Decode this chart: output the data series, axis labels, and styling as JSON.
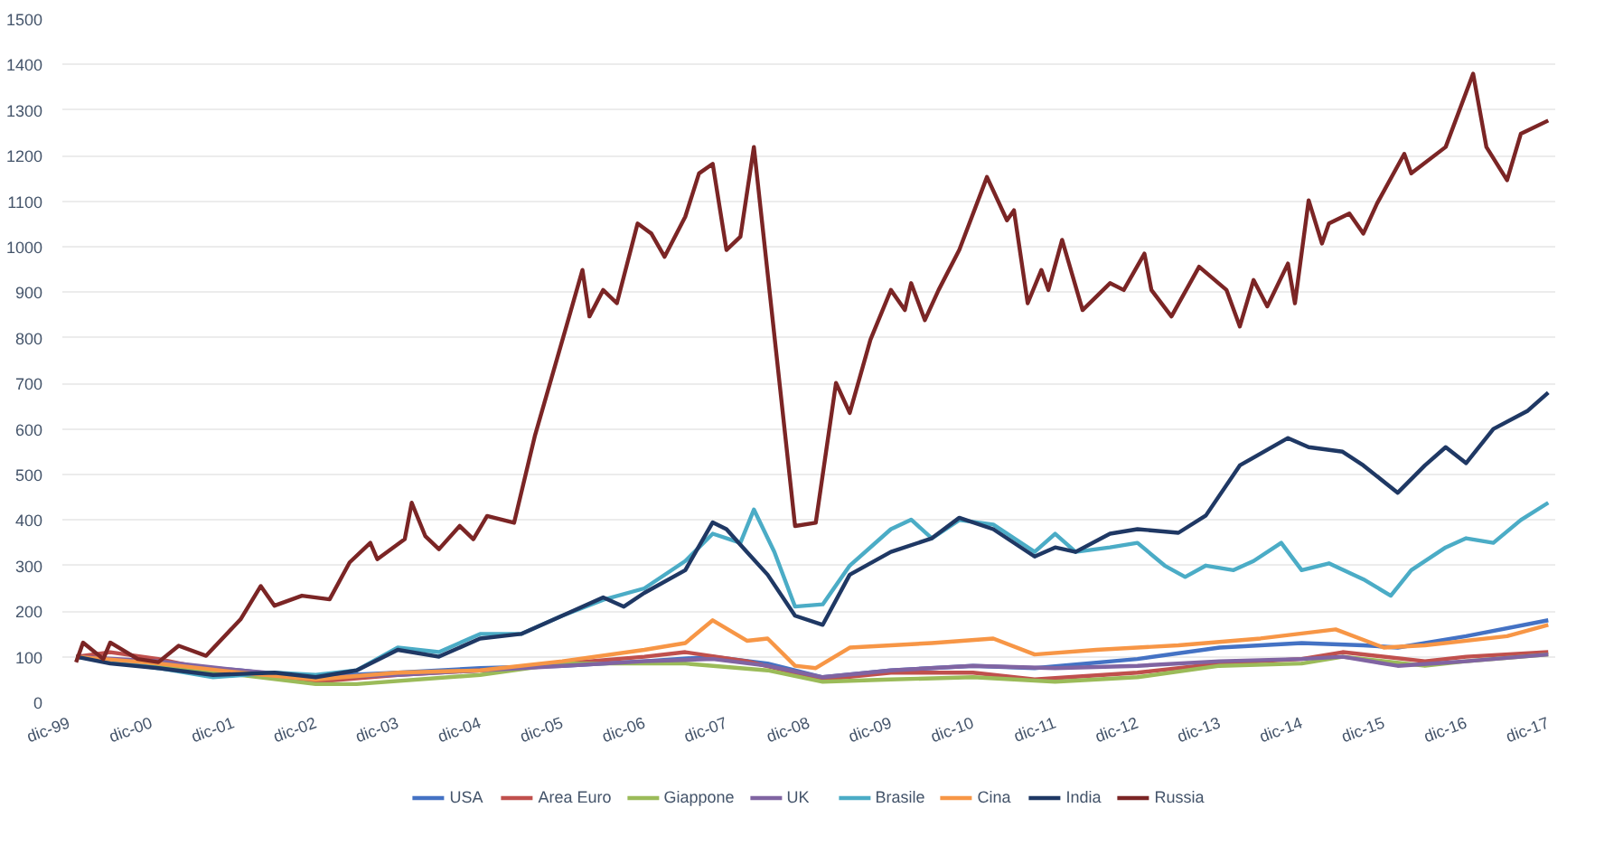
{
  "chart_data": {
    "type": "line",
    "ylim": [
      0,
      1500
    ],
    "yticks": [
      0,
      100,
      200,
      300,
      400,
      500,
      600,
      700,
      800,
      900,
      1000,
      1100,
      1200,
      1300,
      1400,
      1500
    ],
    "xlim": [
      "1999-11",
      "2018-01"
    ],
    "xticks": [
      {
        "value": "1999-12",
        "label": "dic-99"
      },
      {
        "value": "2000-12",
        "label": "dic-00"
      },
      {
        "value": "2001-12",
        "label": "dic-01"
      },
      {
        "value": "2002-12",
        "label": "dic-02"
      },
      {
        "value": "2003-12",
        "label": "dic-03"
      },
      {
        "value": "2004-12",
        "label": "dic-04"
      },
      {
        "value": "2005-12",
        "label": "dic-05"
      },
      {
        "value": "2006-12",
        "label": "dic-06"
      },
      {
        "value": "2007-12",
        "label": "dic-07"
      },
      {
        "value": "2008-12",
        "label": "dic-08"
      },
      {
        "value": "2009-12",
        "label": "dic-09"
      },
      {
        "value": "2010-12",
        "label": "dic-10"
      },
      {
        "value": "2011-12",
        "label": "dic-11"
      },
      {
        "value": "2012-12",
        "label": "dic-12"
      },
      {
        "value": "2013-12",
        "label": "dic-13"
      },
      {
        "value": "2014-12",
        "label": "dic-14"
      },
      {
        "value": "2015-12",
        "label": "dic-15"
      },
      {
        "value": "2016-12",
        "label": "dic-16"
      },
      {
        "value": "2017-12",
        "label": "dic-17"
      }
    ],
    "grid": "y",
    "legend": "bottom",
    "line_style": "solid",
    "series": [
      {
        "name": "USA",
        "color": "#4472c4",
        "x": [
          "2000-01",
          "2001-01",
          "2002-01",
          "2002-10",
          "2003-12",
          "2004-12",
          "2005-12",
          "2006-12",
          "2007-10",
          "2008-06",
          "2009-02",
          "2009-12",
          "2010-12",
          "2011-09",
          "2012-12",
          "2013-12",
          "2014-12",
          "2015-09",
          "2016-02",
          "2016-12",
          "2017-12"
        ],
        "values": [
          100,
          85,
          70,
          55,
          65,
          75,
          80,
          90,
          100,
          85,
          55,
          70,
          80,
          75,
          95,
          120,
          130,
          125,
          120,
          145,
          180
        ]
      },
      {
        "name": "Area Euro",
        "color": "#c0504d",
        "x": [
          "2000-01",
          "2000-06",
          "2001-01",
          "2001-09",
          "2002-12",
          "2003-12",
          "2004-12",
          "2005-12",
          "2006-12",
          "2007-06",
          "2008-03",
          "2009-02",
          "2009-12",
          "2010-12",
          "2011-09",
          "2012-12",
          "2013-12",
          "2014-12",
          "2015-06",
          "2016-06",
          "2016-12",
          "2017-12"
        ],
        "values": [
          100,
          110,
          95,
          70,
          45,
          60,
          70,
          85,
          100,
          110,
          90,
          50,
          65,
          65,
          50,
          65,
          85,
          95,
          110,
          90,
          100,
          110
        ]
      },
      {
        "name": "Giappone",
        "color": "#9bbb59",
        "x": [
          "2000-01",
          "2001-01",
          "2002-01",
          "2002-12",
          "2003-06",
          "2004-12",
          "2005-12",
          "2006-12",
          "2007-06",
          "2008-06",
          "2009-02",
          "2009-12",
          "2010-12",
          "2011-12",
          "2012-12",
          "2013-12",
          "2014-12",
          "2015-06",
          "2016-06",
          "2016-12",
          "2017-12"
        ],
        "values": [
          100,
          80,
          60,
          40,
          40,
          60,
          85,
          85,
          85,
          70,
          45,
          50,
          55,
          45,
          55,
          80,
          85,
          100,
          80,
          90,
          105
        ]
      },
      {
        "name": "UK",
        "color": "#8064a2",
        "x": [
          "2000-01",
          "2001-01",
          "2002-01",
          "2002-12",
          "2003-12",
          "2004-12",
          "2005-12",
          "2006-12",
          "2007-10",
          "2008-06",
          "2009-02",
          "2009-12",
          "2010-12",
          "2011-12",
          "2012-12",
          "2013-12",
          "2014-12",
          "2015-06",
          "2016-02",
          "2016-12",
          "2017-12"
        ],
        "values": [
          100,
          90,
          70,
          55,
          60,
          70,
          80,
          90,
          95,
          80,
          55,
          70,
          80,
          75,
          80,
          90,
          95,
          100,
          80,
          90,
          105
        ]
      },
      {
        "name": "Brasile",
        "color": "#4bacc6",
        "x": [
          "2000-01",
          "2000-06",
          "2001-01",
          "2001-09",
          "2002-06",
          "2002-12",
          "2003-06",
          "2003-12",
          "2004-06",
          "2004-12",
          "2005-06",
          "2005-12",
          "2006-06",
          "2006-12",
          "2007-06",
          "2007-10",
          "2008-02",
          "2008-04",
          "2008-07",
          "2008-10",
          "2009-02",
          "2009-06",
          "2009-12",
          "2010-03",
          "2010-06",
          "2010-10",
          "2011-03",
          "2011-09",
          "2011-12",
          "2012-03",
          "2012-08",
          "2012-12",
          "2013-04",
          "2013-07",
          "2013-10",
          "2014-02",
          "2014-05",
          "2014-09",
          "2014-12",
          "2015-04",
          "2015-09",
          "2016-01",
          "2016-04",
          "2016-09",
          "2016-12",
          "2017-04",
          "2017-08",
          "2017-12"
        ],
        "values": [
          100,
          90,
          75,
          55,
          65,
          60,
          70,
          120,
          110,
          150,
          150,
          190,
          225,
          250,
          310,
          370,
          350,
          423,
          330,
          210,
          215,
          300,
          380,
          401,
          360,
          400,
          390,
          330,
          370,
          330,
          340,
          350,
          300,
          275,
          300,
          290,
          310,
          350,
          290,
          305,
          270,
          234,
          290,
          340,
          360,
          350,
          400,
          438
        ]
      },
      {
        "name": "Cina",
        "color": "#f79646",
        "x": [
          "2000-01",
          "2001-01",
          "2002-01",
          "2002-12",
          "2003-12",
          "2004-12",
          "2005-12",
          "2006-12",
          "2007-06",
          "2007-10",
          "2008-03",
          "2008-06",
          "2008-10",
          "2009-01",
          "2009-06",
          "2010-06",
          "2011-03",
          "2011-09",
          "2012-06",
          "2013-06",
          "2014-06",
          "2015-05",
          "2015-12",
          "2016-06",
          "2017-06",
          "2017-12"
        ],
        "values": [
          100,
          85,
          65,
          50,
          65,
          70,
          90,
          115,
          130,
          180,
          135,
          140,
          80,
          75,
          120,
          130,
          140,
          105,
          115,
          125,
          140,
          160,
          120,
          125,
          145,
          170
        ]
      },
      {
        "name": "India",
        "color": "#1f3864",
        "x": [
          "2000-01",
          "2000-06",
          "2001-01",
          "2001-09",
          "2002-06",
          "2002-12",
          "2003-06",
          "2003-12",
          "2004-06",
          "2004-12",
          "2005-06",
          "2005-12",
          "2006-06",
          "2006-09",
          "2006-12",
          "2007-06",
          "2007-10",
          "2007-12",
          "2008-03",
          "2008-06",
          "2008-10",
          "2009-02",
          "2009-06",
          "2009-12",
          "2010-06",
          "2010-10",
          "2011-03",
          "2011-09",
          "2011-12",
          "2012-03",
          "2012-08",
          "2012-12",
          "2013-06",
          "2013-10",
          "2014-03",
          "2014-10",
          "2015-01",
          "2015-06",
          "2015-09",
          "2016-02",
          "2016-06",
          "2016-09",
          "2016-12",
          "2017-04",
          "2017-09",
          "2017-12"
        ],
        "values": [
          100,
          85,
          75,
          60,
          65,
          55,
          70,
          115,
          100,
          140,
          150,
          190,
          230,
          210,
          240,
          290,
          395,
          380,
          330,
          280,
          190,
          170,
          280,
          330,
          360,
          405,
          380,
          320,
          340,
          330,
          370,
          380,
          372,
          410,
          520,
          580,
          560,
          550,
          520,
          460,
          520,
          560,
          525,
          600,
          640,
          680
        ]
      },
      {
        "name": "Russia",
        "color": "#7b2525",
        "x": [
          "2000-01",
          "2000-02",
          "2000-05",
          "2000-06",
          "2000-10",
          "2001-01",
          "2001-04",
          "2001-08",
          "2002-01",
          "2002-04",
          "2002-06",
          "2002-10",
          "2003-02",
          "2003-05",
          "2003-08",
          "2003-09",
          "2004-01",
          "2004-02",
          "2004-04",
          "2004-06",
          "2004-09",
          "2004-11",
          "2005-01",
          "2005-05",
          "2005-08",
          "2006-01",
          "2006-03",
          "2006-04",
          "2006-06",
          "2006-08",
          "2006-11",
          "2007-01",
          "2007-03",
          "2007-06",
          "2007-08",
          "2007-10",
          "2007-12",
          "2008-02",
          "2008-04",
          "2008-10",
          "2009-01",
          "2009-04",
          "2009-06",
          "2009-09",
          "2009-12",
          "2010-02",
          "2010-03",
          "2010-05",
          "2010-07",
          "2010-10",
          "2011-02",
          "2011-05",
          "2011-06",
          "2011-08",
          "2011-10",
          "2011-11",
          "2012-01",
          "2012-04",
          "2012-08",
          "2012-10",
          "2013-01",
          "2013-02",
          "2013-05",
          "2013-09",
          "2014-01",
          "2014-03",
          "2014-05",
          "2014-07",
          "2014-10",
          "2014-11",
          "2015-01",
          "2015-03",
          "2015-04",
          "2015-07",
          "2015-09",
          "2015-11",
          "2016-03",
          "2016-04",
          "2016-09",
          "2017-01",
          "2017-03",
          "2017-06",
          "2017-08",
          "2017-12"
        ],
        "values": [
          88,
          131,
          95,
          131,
          95,
          88,
          124,
          102,
          182,
          255,
          212,
          234,
          226,
          307,
          350,
          314,
          358,
          438,
          365,
          336,
          387,
          358,
          409,
          394,
          584,
          847,
          949,
          847,
          905,
          876,
          1051,
          1029,
          978,
          1066,
          1161,
          1182,
          993,
          1022,
          1219,
          387,
          394,
          701,
          635,
          796,
          905,
          861,
          920,
          839,
          905,
          993,
          1153,
          1058,
          1080,
          876,
          949,
          905,
          1015,
          861,
          920,
          905,
          985,
          905,
          847,
          956,
          905,
          825,
          927,
          869,
          963,
          876,
          1102,
          1007,
          1051,
          1073,
          1029,
          1095,
          1204,
          1161,
          1219,
          1380,
          1219,
          1146,
          1248,
          1277
        ]
      }
    ]
  }
}
